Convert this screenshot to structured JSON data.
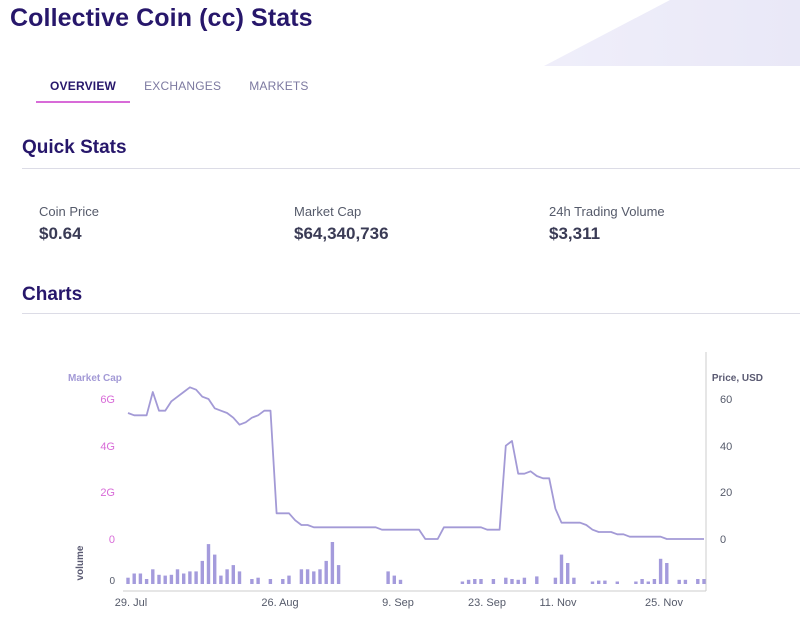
{
  "page": {
    "title": "Collective Coin (cc) Stats"
  },
  "tabs": [
    {
      "label": "OVERVIEW",
      "active": true
    },
    {
      "label": "EXCHANGES",
      "active": false
    },
    {
      "label": "MARKETS",
      "active": false
    }
  ],
  "quick_stats": {
    "heading": "Quick Stats",
    "items": [
      {
        "label": "Coin Price",
        "value": "$0.64"
      },
      {
        "label": "Market Cap",
        "value": "$64,340,736"
      },
      {
        "label": "24h Trading Volume",
        "value": "$3,311"
      }
    ]
  },
  "charts_section": {
    "heading": "Charts"
  },
  "colors": {
    "accent": "#d86bd8",
    "title": "#27176b",
    "line": "#a39ad6",
    "bar": "#a49bdc"
  },
  "chart_data": {
    "type": "line",
    "title": "",
    "left_axis_label": "Market Cap",
    "right_axis_label": "Price, USD",
    "volume_axis_label": "volume",
    "left_ticks": [
      "0",
      "2G",
      "4G",
      "6G"
    ],
    "right_ticks": [
      "0",
      "20",
      "40",
      "60"
    ],
    "volume_tick": "0",
    "x_ticks": [
      "29. Jul",
      "26. Aug",
      "9. Sep",
      "23. Sep",
      "11. Nov",
      "25. Nov"
    ],
    "ylim_price": [
      0,
      65
    ],
    "series": [
      {
        "name": "Price",
        "values": [
          54,
          53,
          53,
          53,
          63,
          55,
          55,
          59,
          61,
          63,
          65,
          64,
          61,
          60,
          56,
          55,
          54,
          52,
          49,
          50,
          52,
          53,
          55,
          55,
          11,
          11,
          11,
          8,
          6,
          6,
          5,
          5,
          5,
          5,
          5,
          5,
          5,
          5,
          5,
          5,
          5,
          4,
          4,
          4,
          4,
          4,
          4,
          4,
          0,
          0,
          0,
          5,
          5,
          5,
          5,
          5,
          5,
          5,
          4,
          4,
          4,
          40,
          42,
          28,
          28,
          29,
          27,
          26,
          26,
          13,
          7,
          7,
          7,
          7,
          6,
          4,
          3,
          3,
          3,
          2,
          2,
          1,
          1,
          1,
          1,
          1,
          1,
          0,
          0,
          0,
          0,
          0,
          0,
          0
        ]
      },
      {
        "name": "Volume",
        "values": [
          0.15,
          0.25,
          0.25,
          0.12,
          0.35,
          0.22,
          0.2,
          0.22,
          0.35,
          0.25,
          0.3,
          0.3,
          0.55,
          0.95,
          0.7,
          0.2,
          0.35,
          0.45,
          0.3,
          0,
          0.12,
          0.15,
          0,
          0.12,
          0,
          0.12,
          0.2,
          0,
          0.35,
          0.35,
          0.3,
          0.35,
          0.55,
          1,
          0.45,
          0,
          0,
          0,
          0,
          0,
          0,
          0,
          0.3,
          0.2,
          0.1,
          0,
          0,
          0,
          0,
          0,
          0,
          0,
          0,
          0,
          0.06,
          0.1,
          0.12,
          0.12,
          0,
          0.12,
          0,
          0.15,
          0.12,
          0.1,
          0.15,
          0,
          0.18,
          0,
          0,
          0.15,
          0.7,
          0.5,
          0.15,
          0,
          0,
          0.06,
          0.08,
          0.08,
          0,
          0.06,
          0,
          0,
          0.06,
          0.12,
          0.06,
          0.12,
          0.6,
          0.5,
          0,
          0.1,
          0.1,
          0,
          0.12,
          0.12
        ]
      }
    ]
  }
}
